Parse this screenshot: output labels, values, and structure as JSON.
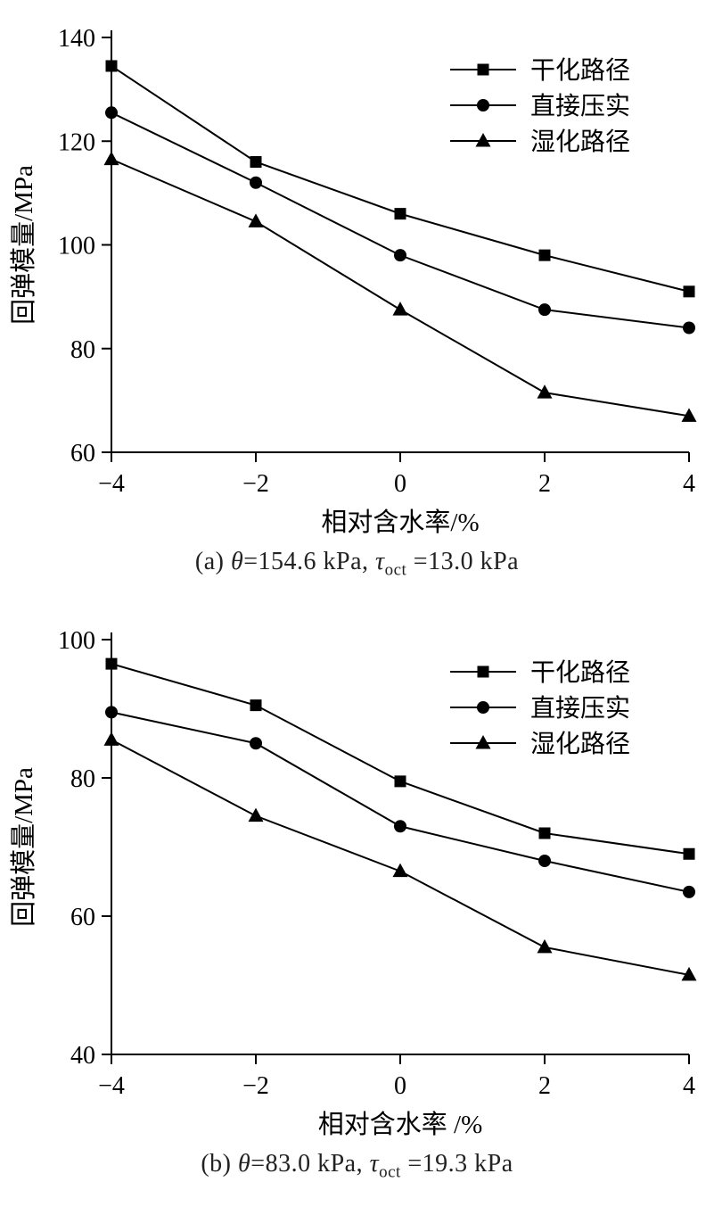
{
  "figure_colors": {
    "line": "#000000",
    "marker": "#000000",
    "text": "#222222",
    "background": "#ffffff"
  },
  "chart_data": [
    {
      "id": "a",
      "type": "line",
      "x": [
        -4,
        -2,
        0,
        2,
        4
      ],
      "series": [
        {
          "name": "干化路径",
          "marker": "square",
          "values": [
            134.5,
            116.0,
            106.0,
            98.0,
            91.0
          ]
        },
        {
          "name": "直接压实",
          "marker": "circle",
          "values": [
            125.5,
            112.0,
            98.0,
            87.5,
            84.0
          ]
        },
        {
          "name": "湿化路径",
          "marker": "triangle",
          "values": [
            116.5,
            104.5,
            87.5,
            71.5,
            67.0
          ]
        }
      ],
      "title": "",
      "xlabel": "相对含水率/%",
      "ylabel": "回弹模量/MPa",
      "xlim": [
        -4,
        4
      ],
      "ylim": [
        60,
        140
      ],
      "xticks": [
        -4,
        -2,
        0,
        2,
        4
      ],
      "yticks": [
        60,
        80,
        100,
        120,
        140
      ],
      "grid": false,
      "legend_position": "top-right",
      "caption": {
        "index": "(a) ",
        "theta_sym": "θ",
        "theta_eq": "=154.6 kPa, ",
        "tau_sym": "τ",
        "tau_sub": "oct",
        "tau_eq": " =13.0 kPa"
      }
    },
    {
      "id": "b",
      "type": "line",
      "x": [
        -4,
        -2,
        0,
        2,
        4
      ],
      "series": [
        {
          "name": "干化路径",
          "marker": "square",
          "values": [
            96.5,
            90.5,
            79.5,
            72.0,
            69.0
          ]
        },
        {
          "name": "直接压实",
          "marker": "circle",
          "values": [
            89.5,
            85.0,
            73.0,
            68.0,
            63.5
          ]
        },
        {
          "name": "湿化路径",
          "marker": "triangle",
          "values": [
            85.5,
            74.5,
            66.5,
            55.5,
            51.5
          ]
        }
      ],
      "title": "",
      "xlabel": "相对含水率 /%",
      "ylabel": "回弹模量/MPa",
      "xlim": [
        -4,
        4
      ],
      "ylim": [
        40,
        100
      ],
      "xticks": [
        -4,
        -2,
        0,
        2,
        4
      ],
      "yticks": [
        40,
        60,
        80,
        100
      ],
      "grid": false,
      "legend_position": "top-right",
      "caption": {
        "index": "(b) ",
        "theta_sym": "θ",
        "theta_eq": "=83.0 kPa, ",
        "tau_sym": "τ",
        "tau_sub": "oct",
        "tau_eq": " =19.3 kPa"
      }
    }
  ]
}
